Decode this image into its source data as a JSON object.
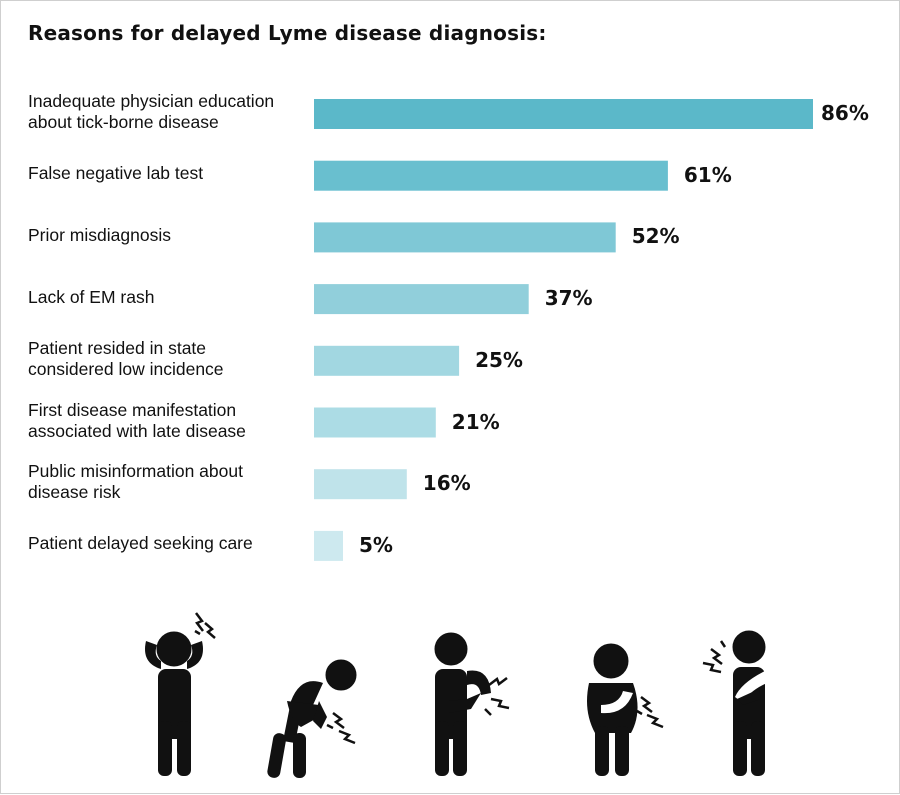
{
  "chart_data": {
    "type": "bar",
    "orientation": "horizontal",
    "title": "Reasons for delayed Lyme disease diagnosis:",
    "categories": [
      "Inadequate physician education\nabout tick-borne disease",
      "False negative lab test",
      "Prior misdiagnosis",
      "Lack of EM rash",
      "Patient resided in state\nconsidered low incidence",
      "First disease manifestation\nassociated with late disease",
      "Public misinformation about\ndisease risk",
      "Patient delayed seeking care"
    ],
    "values": [
      86,
      61,
      52,
      37,
      25,
      21,
      16,
      5
    ],
    "value_labels": [
      "86%",
      "61%",
      "52%",
      "37%",
      "25%",
      "21%",
      "16%",
      "5%"
    ],
    "colors": [
      "#5bb8c9",
      "#69bfcf",
      "#7fc8d6",
      "#91cfdb",
      "#a2d7e1",
      "#acdce5",
      "#bfe3ea",
      "#cde9ef"
    ],
    "xlim": [
      0,
      86
    ],
    "grid": false,
    "legend": "none"
  },
  "illustrations": {
    "icons": [
      "headache-figure-icon",
      "back-pain-figure-icon",
      "shoulder-pain-figure-icon",
      "stomach-pain-figure-icon",
      "chest-pain-figure-icon"
    ],
    "color": "#111111"
  }
}
